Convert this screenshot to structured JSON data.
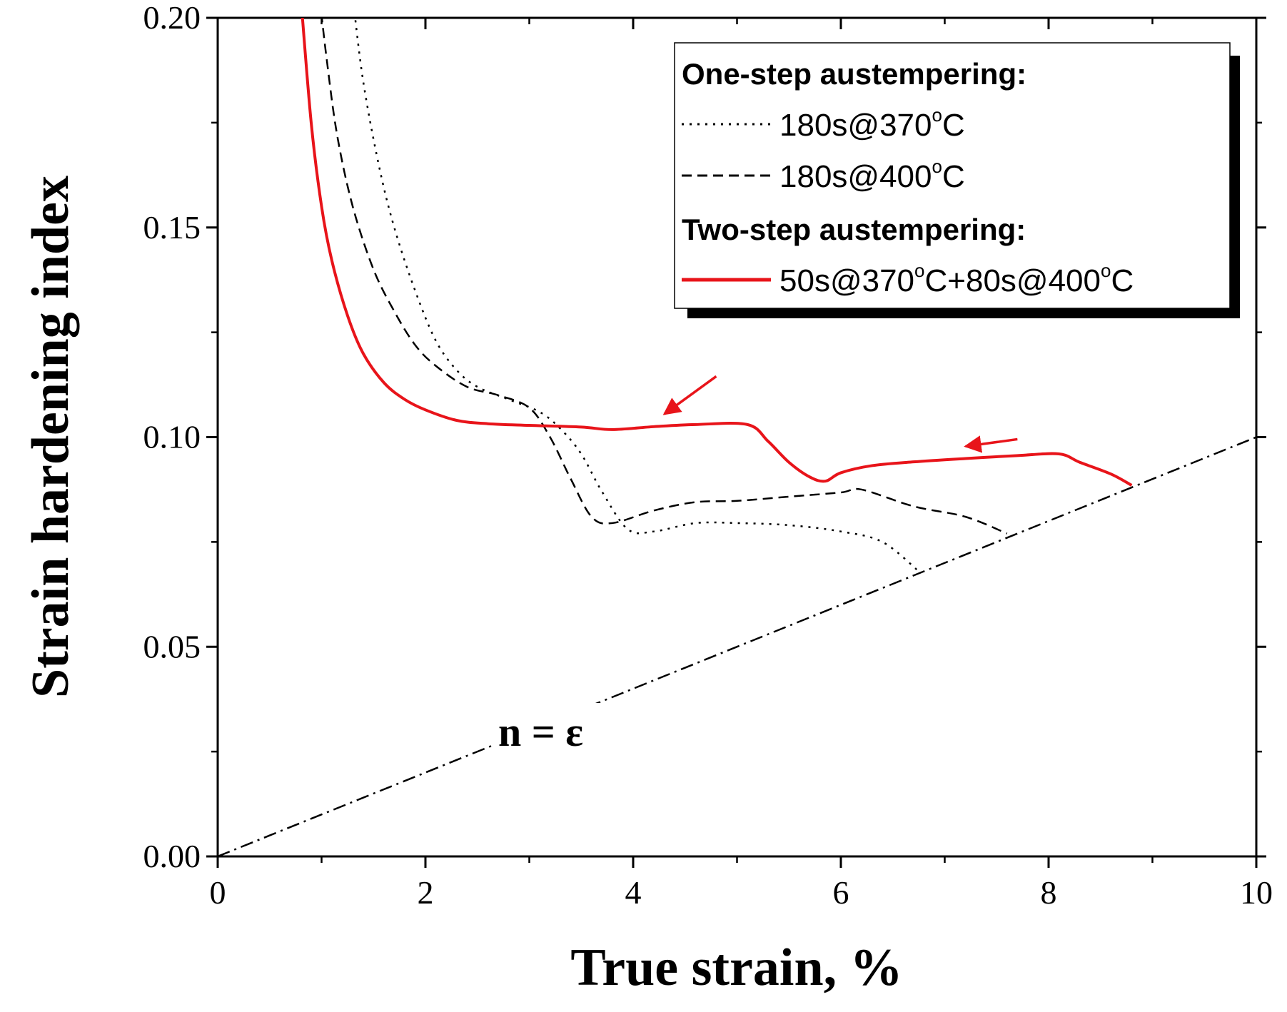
{
  "chart_data": {
    "type": "line",
    "title": "",
    "xlabel": "True strain, %",
    "ylabel": "Strain hardening index",
    "xlim": [
      0,
      10
    ],
    "ylim": [
      0,
      0.2
    ],
    "x_ticks": [
      "0",
      "2",
      "4",
      "6",
      "8",
      "10"
    ],
    "y_ticks": [
      "0.00",
      "0.05",
      "0.10",
      "0.15",
      "0.20"
    ],
    "x_tick_values": [
      0,
      2,
      4,
      6,
      8,
      10
    ],
    "y_tick_values": [
      0,
      0.05,
      0.1,
      0.15,
      0.2
    ],
    "legend": {
      "placement": "top-right",
      "group1_title": "One-step austempering:",
      "group2_title": "Two-step austempering:"
    },
    "series": [
      {
        "name": "180s@370°C",
        "label_main": "180s@370",
        "label_sup": "o",
        "label_end": "C",
        "style": "dotted",
        "color": "#000000",
        "x": [
          1.3,
          1.4,
          1.55,
          1.7,
          1.9,
          2.1,
          2.3,
          2.5,
          2.8,
          3.1,
          3.3,
          3.5,
          3.7,
          3.95,
          4.2,
          4.6,
          5.0,
          5.5,
          6.0,
          6.4,
          6.75
        ],
        "y": [
          0.205,
          0.185,
          0.165,
          0.15,
          0.135,
          0.123,
          0.116,
          0.112,
          0.109,
          0.106,
          0.102,
          0.096,
          0.087,
          0.078,
          0.0775,
          0.0795,
          0.0795,
          0.079,
          0.0775,
          0.075,
          0.068
        ]
      },
      {
        "name": "180s@400°C",
        "label_main": "180s@400",
        "label_sup": "o",
        "label_end": "C",
        "style": "dashed",
        "color": "#000000",
        "x": [
          0.98,
          1.05,
          1.15,
          1.3,
          1.5,
          1.7,
          1.9,
          2.1,
          2.4,
          2.7,
          3.0,
          3.2,
          3.4,
          3.6,
          3.8,
          4.2,
          4.6,
          5.0,
          5.5,
          6.0,
          6.2,
          6.7,
          7.2,
          7.6
        ],
        "y": [
          0.205,
          0.19,
          0.172,
          0.155,
          0.14,
          0.13,
          0.122,
          0.117,
          0.112,
          0.11,
          0.107,
          0.1,
          0.09,
          0.081,
          0.0795,
          0.0825,
          0.0845,
          0.0848,
          0.0858,
          0.0868,
          0.0875,
          0.0835,
          0.081,
          0.077
        ]
      },
      {
        "name": "50s@370°C+80s@400°C",
        "label_main": "50s@370",
        "label_sup": "o",
        "label_mid": "C+80s@400",
        "label_sup2": "o",
        "label_end": "C",
        "style": "solid",
        "color": "#e8141a",
        "x": [
          0.8,
          0.9,
          1.0,
          1.1,
          1.25,
          1.4,
          1.6,
          1.8,
          2.0,
          2.3,
          2.6,
          3.0,
          3.5,
          3.8,
          4.2,
          4.6,
          5.1,
          5.3,
          5.5,
          5.7,
          5.85,
          6.0,
          6.3,
          6.7,
          7.2,
          7.7,
          8.1,
          8.3,
          8.6,
          8.8
        ],
        "y": [
          0.205,
          0.175,
          0.155,
          0.142,
          0.129,
          0.12,
          0.113,
          0.109,
          0.1065,
          0.104,
          0.1032,
          0.1028,
          0.1024,
          0.1018,
          0.1025,
          0.103,
          0.103,
          0.099,
          0.094,
          0.0905,
          0.0895,
          0.0915,
          0.0932,
          0.0941,
          0.0949,
          0.0956,
          0.096,
          0.094,
          0.0912,
          0.0885
        ]
      },
      {
        "name": "n = ε",
        "style": "dash-dot",
        "color": "#000000",
        "x": [
          0,
          10
        ],
        "y": [
          0,
          0.1
        ]
      }
    ],
    "annotations": [
      {
        "text": "n = ε",
        "x": 3.8,
        "y": 0.029
      },
      {
        "type": "arrow",
        "color": "#e8141a",
        "from": [
          4.8,
          0.1145
        ],
        "to": [
          4.3,
          0.1055
        ]
      },
      {
        "type": "arrow",
        "color": "#e8141a",
        "from": [
          7.7,
          0.0995
        ],
        "to": [
          7.2,
          0.0978
        ]
      }
    ]
  }
}
